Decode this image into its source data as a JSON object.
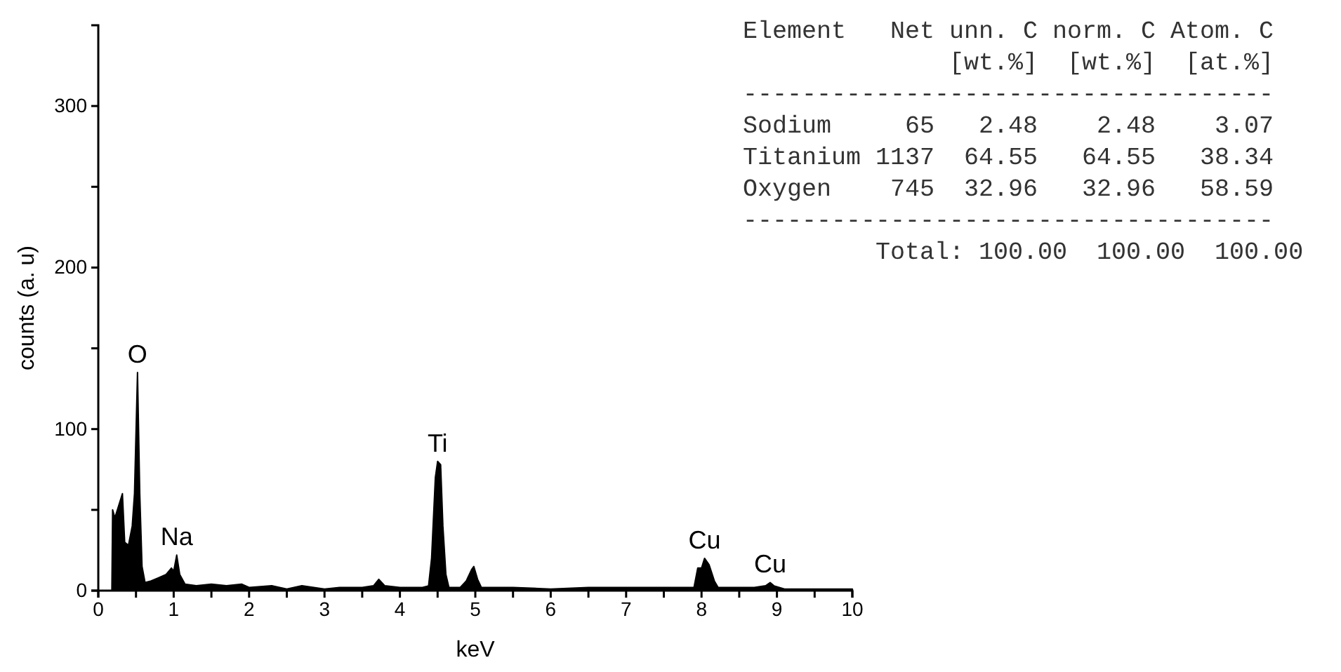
{
  "chart_data": {
    "type": "area",
    "xlabel": "keV",
    "ylabel": "counts (a. u)",
    "xlim": [
      0,
      10
    ],
    "ylim": [
      0,
      350
    ],
    "xticks": [
      0,
      {
        "value": 0.5,
        "label": null
      },
      1,
      {
        "value": 1.5,
        "label": null
      },
      2,
      {
        "value": 2.5,
        "label": null
      },
      3,
      {
        "value": 3.5,
        "label": null
      },
      4,
      {
        "value": 4.5,
        "label": null
      },
      5,
      {
        "value": 5.5,
        "label": null
      },
      6,
      {
        "value": 6.5,
        "label": null
      },
      7,
      {
        "value": 7.5,
        "label": null
      },
      8,
      {
        "value": 8.5,
        "label": null
      },
      9,
      {
        "value": 9.5,
        "label": null
      },
      10
    ],
    "yticks": [
      0,
      {
        "value": 50,
        "label": null
      },
      100,
      {
        "value": 150,
        "label": null
      },
      200,
      {
        "value": 250,
        "label": null
      },
      300
    ],
    "color": "#000000",
    "x": [
      0.18,
      0.19,
      0.22,
      0.32,
      0.35,
      0.4,
      0.45,
      0.48,
      0.52,
      0.55,
      0.58,
      0.62,
      0.7,
      0.8,
      0.9,
      0.97,
      1.0,
      1.04,
      1.08,
      1.15,
      1.3,
      1.5,
      1.7,
      1.9,
      2.0,
      2.3,
      2.5,
      2.7,
      3.0,
      3.2,
      3.5,
      3.65,
      3.72,
      3.8,
      4.0,
      4.3,
      4.38,
      4.42,
      4.47,
      4.5,
      4.54,
      4.57,
      4.61,
      4.65,
      4.8,
      4.88,
      4.95,
      4.98,
      5.03,
      5.08,
      5.5,
      6.0,
      6.5,
      6.8,
      7.5,
      7.9,
      7.95,
      8.0,
      8.04,
      8.1,
      8.17,
      8.22,
      8.7,
      8.85,
      8.91,
      8.96,
      9.1,
      9.5,
      10
    ],
    "values": [
      0,
      50,
      45,
      60,
      30,
      28,
      40,
      60,
      135,
      60,
      15,
      5,
      6,
      8,
      10,
      14,
      12,
      22,
      10,
      4,
      3,
      4,
      3,
      4,
      2,
      3,
      1,
      3,
      1,
      2,
      2,
      3,
      7,
      3,
      2,
      2,
      3,
      20,
      70,
      80,
      78,
      40,
      10,
      2,
      2,
      6,
      13,
      15,
      7,
      2,
      2,
      1,
      2,
      2,
      2,
      2,
      14,
      14,
      20,
      16,
      6,
      2,
      2,
      3,
      5,
      3,
      1,
      1,
      1
    ],
    "annotations": [
      {
        "text": "O",
        "x": 0.52,
        "y": 135
      },
      {
        "text": "Na",
        "x": 1.04,
        "y": 22
      },
      {
        "text": "Ti",
        "x": 4.5,
        "y": 80
      },
      {
        "text": "Cu",
        "x": 8.04,
        "y": 20
      },
      {
        "text": "Cu",
        "x": 8.91,
        "y": 5
      },
      "Element   Net unn. C norm. C Atom. C",
      "              [wt.%]  [wt.%]  [at.%]",
      "------------------------------------",
      "Sodium     65   2.48    2.48    3.07",
      "Titanium 1137  64.55   64.55   38.34",
      "Oxygen    745  32.96   32.96   58.59",
      "------------------------------------",
      "         Total: 100.00  100.00  100.00"
    ]
  }
}
